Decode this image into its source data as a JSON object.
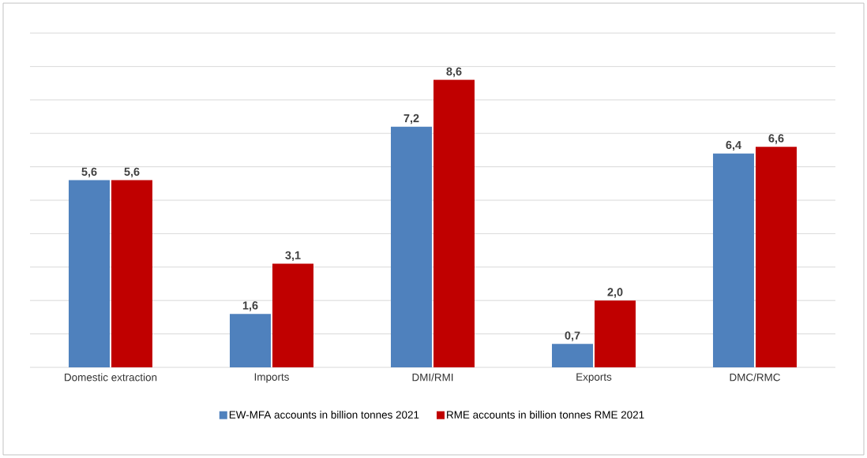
{
  "chart_data": {
    "type": "bar",
    "categories": [
      "Domestic extraction",
      "Imports",
      "DMI/RMI",
      "Exports",
      "DMC/RMC"
    ],
    "series": [
      {
        "name": "EW-MFA accounts in billion tonnes 2021",
        "color": "#4f81bd",
        "values": [
          5.6,
          1.6,
          7.2,
          0.7,
          6.4
        ],
        "value_labels": [
          "5,6",
          "1,6",
          "7,2",
          "0,7",
          "6,4"
        ]
      },
      {
        "name": "RME accounts in billion tonnes RME 2021",
        "color": "#c00000",
        "values": [
          5.6,
          3.1,
          8.6,
          2.0,
          6.6
        ],
        "value_labels": [
          "5,6",
          "3,1",
          "8,6",
          "2,0",
          "6,6"
        ]
      }
    ],
    "ylim": [
      0,
      10
    ],
    "yticks": [
      {
        "value": 0,
        "label": null
      },
      {
        "value": 1,
        "label": null
      },
      {
        "value": 2,
        "label": null
      },
      {
        "value": 3,
        "label": null
      },
      {
        "value": 4,
        "label": null
      },
      {
        "value": 5,
        "label": null
      },
      {
        "value": 6,
        "label": null
      },
      {
        "value": 7,
        "label": null
      },
      {
        "value": 8,
        "label": null
      },
      {
        "value": 9,
        "label": null
      },
      {
        "value": 10,
        "label": null
      }
    ],
    "tick_labels": "x",
    "grid": "y",
    "legend": "bottom"
  }
}
